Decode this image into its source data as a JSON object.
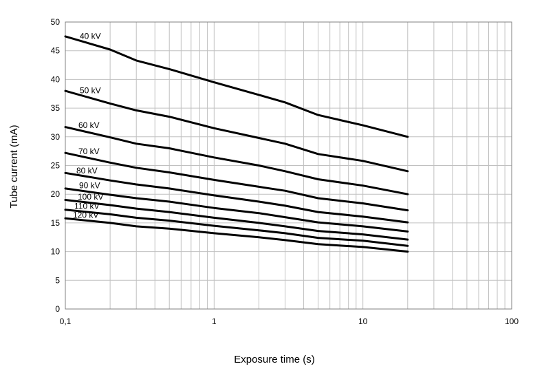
{
  "chart_data": {
    "type": "line",
    "title": "",
    "xlabel": "Exposure time (s)",
    "ylabel": "Tube current (mA)",
    "x_scale": "log",
    "xlim": [
      0.1,
      100
    ],
    "ylim": [
      0,
      50
    ],
    "x_tick_labels": [
      "0,1",
      "1",
      "10",
      "100"
    ],
    "x_tick_values": [
      0.1,
      1,
      10,
      100
    ],
    "y_tick_values": [
      0,
      5,
      10,
      15,
      20,
      25,
      30,
      35,
      40,
      45,
      50
    ],
    "grid": true,
    "legend": "inline labels near left end of each curve",
    "line_color": "#000000",
    "grid_color": "#c0c0c0",
    "series": [
      {
        "name": "40 kV",
        "x": [
          0.1,
          0.2,
          0.3,
          0.5,
          1,
          2,
          3,
          5,
          10,
          20
        ],
        "y": [
          47.5,
          45.2,
          43.3,
          41.8,
          39.5,
          37.3,
          36.0,
          33.8,
          32.0,
          30.0
        ]
      },
      {
        "name": "50 kV",
        "x": [
          0.1,
          0.2,
          0.3,
          0.5,
          1,
          2,
          3,
          5,
          10,
          20
        ],
        "y": [
          38.0,
          35.8,
          34.6,
          33.5,
          31.5,
          29.8,
          28.8,
          27.0,
          25.8,
          24.0
        ]
      },
      {
        "name": "60 kV",
        "x": [
          0.1,
          0.2,
          0.3,
          0.5,
          1,
          2,
          3,
          5,
          10,
          20
        ],
        "y": [
          31.7,
          29.9,
          28.8,
          28.0,
          26.4,
          25.0,
          24.0,
          22.6,
          21.5,
          20.0
        ]
      },
      {
        "name": "70 kV",
        "x": [
          0.1,
          0.2,
          0.3,
          0.5,
          1,
          2,
          3,
          5,
          10,
          20
        ],
        "y": [
          27.2,
          25.5,
          24.6,
          23.8,
          22.5,
          21.3,
          20.6,
          19.3,
          18.4,
          17.2
        ]
      },
      {
        "name": "80 kV",
        "x": [
          0.1,
          0.2,
          0.3,
          0.5,
          1,
          2,
          3,
          5,
          10,
          20
        ],
        "y": [
          23.7,
          22.4,
          21.7,
          21.0,
          19.8,
          18.7,
          18.0,
          16.9,
          16.1,
          15.1
        ]
      },
      {
        "name": "90 kV",
        "x": [
          0.1,
          0.2,
          0.3,
          0.5,
          1,
          2,
          3,
          5,
          10,
          20
        ],
        "y": [
          21.0,
          19.9,
          19.3,
          18.7,
          17.6,
          16.7,
          16.0,
          15.1,
          14.4,
          13.5
        ]
      },
      {
        "name": "100 kV",
        "x": [
          0.1,
          0.2,
          0.3,
          0.5,
          1,
          2,
          3,
          5,
          10,
          20
        ],
        "y": [
          19.0,
          18.1,
          17.5,
          16.9,
          15.9,
          15.0,
          14.4,
          13.6,
          13.0,
          12.1
        ]
      },
      {
        "name": "110 kV",
        "x": [
          0.1,
          0.2,
          0.3,
          0.5,
          1,
          2,
          3,
          5,
          10,
          20
        ],
        "y": [
          17.3,
          16.5,
          15.9,
          15.4,
          14.5,
          13.7,
          13.2,
          12.4,
          11.9,
          11.0
        ]
      },
      {
        "name": "120 kV",
        "x": [
          0.1,
          0.2,
          0.3,
          0.5,
          1,
          2,
          3,
          5,
          10,
          20
        ],
        "y": [
          15.8,
          15.0,
          14.4,
          14.0,
          13.2,
          12.5,
          12.0,
          11.3,
          10.8,
          10.0
        ]
      }
    ]
  }
}
